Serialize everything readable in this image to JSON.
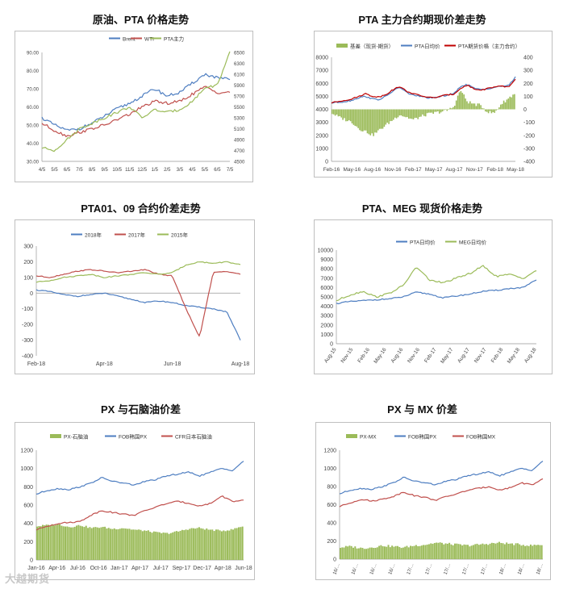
{
  "watermark": "大越期货",
  "chart_data": [
    {
      "id": "c1",
      "type": "line",
      "title": "原油、PTA 价格走势",
      "x_ticks": [
        "4/5",
        "5/5",
        "6/5",
        "7/5",
        "8/5",
        "9/5",
        "10/5",
        "11/5",
        "12/5",
        "1/5",
        "2/5",
        "3/5",
        "4/5",
        "5/5",
        "6/5",
        "7/5"
      ],
      "y_left": {
        "ticks": [
          "30.00",
          "40.00",
          "50.00",
          "60.00",
          "70.00",
          "80.00",
          "90.00"
        ],
        "range": [
          30,
          90
        ]
      },
      "y_right": {
        "ticks": [
          "4500",
          "4700",
          "4900",
          "5100",
          "5300",
          "5500",
          "5700",
          "5900",
          "6100",
          "6300",
          "6500"
        ],
        "range": [
          4500,
          6500
        ]
      },
      "series": [
        {
          "name": "Brent",
          "color": "#4e7ec1",
          "axis": "left",
          "values": [
            54,
            50,
            47,
            48,
            51,
            55,
            59,
            62,
            66,
            70,
            66,
            68,
            73,
            78,
            76,
            75
          ]
        },
        {
          "name": "WTI",
          "color": "#c0504d",
          "axis": "left",
          "values": [
            51,
            47,
            44,
            46,
            48,
            50,
            53,
            56,
            60,
            63,
            62,
            63,
            67,
            71,
            68,
            68
          ]
        },
        {
          "name": "PTA主力",
          "color": "#9bbb59",
          "axis": "right",
          "values": [
            4750,
            4700,
            4900,
            5100,
            5200,
            5300,
            5400,
            5500,
            5300,
            5450,
            5400,
            5450,
            5600,
            5850,
            5900,
            6500
          ]
        }
      ]
    },
    {
      "id": "c2",
      "type": "bar+line",
      "title": "PTA 主力合约期现价差走势",
      "x_ticks": [
        "Feb-16",
        "May-16",
        "Aug-16",
        "Nov-16",
        "Feb-17",
        "May-17",
        "Aug-17",
        "Nov-17",
        "Feb-18",
        "May-18"
      ],
      "y_left": {
        "ticks": [
          "0",
          "1000",
          "2000",
          "3000",
          "4000",
          "5000",
          "6000",
          "7000",
          "8000"
        ],
        "range": [
          0,
          8000
        ]
      },
      "y_right": {
        "ticks": [
          "-400",
          "-300",
          "-200",
          "-100",
          "0",
          "100",
          "200",
          "300",
          "400"
        ],
        "range": [
          -400,
          400
        ]
      },
      "series": [
        {
          "name": "基差（现货-期货）",
          "color": "#9bbb59",
          "kind": "bar",
          "axis": "right",
          "values": [
            -30,
            -60,
            -80,
            -100,
            -150,
            -170,
            -200,
            -160,
            -120,
            -80,
            -40,
            -60,
            -80,
            -60,
            -40,
            -30,
            -20,
            -10,
            20,
            150,
            60,
            40,
            30,
            -20,
            -30,
            40,
            80,
            120
          ]
        },
        {
          "name": "PTA日均价",
          "color": "#4e7ec1",
          "kind": "line",
          "axis": "left",
          "values": [
            4500,
            4550,
            4600,
            4700,
            4900,
            5000,
            4800,
            4750,
            5000,
            5400,
            5700,
            5300,
            5100,
            5000,
            4900,
            4850,
            5000,
            5100,
            5200,
            5800,
            5900,
            5600,
            5500,
            5600,
            5700,
            5800,
            5800,
            6500
          ]
        },
        {
          "name": "PTA期货价格（主力合约）",
          "color": "#c00000",
          "kind": "line",
          "axis": "left",
          "values": [
            4500,
            4600,
            4700,
            4800,
            5000,
            5200,
            5000,
            4950,
            5150,
            5500,
            5750,
            5400,
            5200,
            5050,
            4950,
            4880,
            5020,
            5100,
            5180,
            5650,
            5850,
            5550,
            5470,
            5620,
            5730,
            5760,
            5720,
            6300
          ]
        }
      ]
    },
    {
      "id": "c3",
      "type": "line",
      "title": "PTA01、09 合约价差走势",
      "x_ticks": [
        "Feb-18",
        "Apr-18",
        "Jun-18",
        "Aug-18"
      ],
      "y_left": {
        "ticks": [
          "-400",
          "-300",
          "-200",
          "-100",
          "0",
          "100",
          "200",
          "300"
        ],
        "range": [
          -400,
          300
        ]
      },
      "series": [
        {
          "name": "2018年",
          "color": "#4e7ec1",
          "values": [
            20,
            10,
            -10,
            -20,
            -10,
            0,
            -20,
            -40,
            -60,
            -50,
            -60,
            -80,
            -90,
            -100,
            -120,
            -300
          ]
        },
        {
          "name": "2017年",
          "color": "#c0504d",
          "values": [
            110,
            100,
            120,
            140,
            150,
            140,
            130,
            140,
            150,
            120,
            110,
            -100,
            -280,
            130,
            140,
            120
          ]
        },
        {
          "name": "2015年",
          "color": "#9bbb59",
          "values": [
            70,
            80,
            100,
            110,
            120,
            100,
            110,
            120,
            130,
            120,
            130,
            180,
            200,
            190,
            200,
            180
          ]
        }
      ]
    },
    {
      "id": "c4",
      "type": "line",
      "title": "PTA、MEG 现货价格走势",
      "x_ticks": [
        "Aug-15",
        "Nov-15",
        "Feb-16",
        "May-16",
        "Aug-16",
        "Nov-16",
        "Feb-17",
        "May-17",
        "Aug-17",
        "Nov-17",
        "Feb-18",
        "May-18",
        "Aug-18"
      ],
      "y_left": {
        "ticks": [
          "0",
          "1000",
          "2000",
          "3000",
          "4000",
          "5000",
          "6000",
          "7000",
          "8000",
          "9000",
          "10000"
        ],
        "range": [
          0,
          10000
        ]
      },
      "series": [
        {
          "name": "PTA日均价",
          "color": "#4e7ec1",
          "values": [
            4300,
            4500,
            4600,
            4700,
            4800,
            5000,
            5500,
            5300,
            4900,
            5100,
            5300,
            5600,
            5700,
            5900,
            6000,
            6800
          ]
        },
        {
          "name": "MEG日均价",
          "color": "#9bbb59",
          "values": [
            4600,
            5200,
            5600,
            5000,
            5400,
            6200,
            8200,
            6800,
            6500,
            7000,
            7500,
            8300,
            7200,
            7400,
            7000,
            7800
          ]
        }
      ]
    },
    {
      "id": "c5",
      "type": "bar+line",
      "title": "PX 与石脑油价差",
      "x_ticks": [
        "Jan-16",
        "Apr-16",
        "Jul-16",
        "Oct-16",
        "Jan-17",
        "Apr-17",
        "Jul-17",
        "Sep-17",
        "Dec-17",
        "Apr-18",
        "Jun-18"
      ],
      "y_left": {
        "ticks": [
          "0",
          "200",
          "400",
          "600",
          "800",
          "1000",
          "1200"
        ],
        "range": [
          0,
          1200
        ]
      },
      "series": [
        {
          "name": "PX-石脑油",
          "color": "#9bbb59",
          "kind": "bar",
          "values": [
            370,
            380,
            390,
            360,
            380,
            350,
            360,
            340,
            350,
            330,
            320,
            300,
            290,
            310,
            340,
            350,
            330,
            320,
            330,
            370
          ]
        },
        {
          "name": "FOB韩国PX",
          "color": "#4e7ec1",
          "kind": "line",
          "values": [
            720,
            760,
            780,
            770,
            800,
            840,
            900,
            860,
            840,
            820,
            860,
            880,
            920,
            940,
            960,
            920,
            960,
            1000,
            980,
            1080
          ]
        },
        {
          "name": "CFR日本石脑油",
          "color": "#c0504d",
          "kind": "line",
          "values": [
            330,
            370,
            400,
            410,
            420,
            490,
            540,
            520,
            500,
            490,
            540,
            580,
            620,
            640,
            620,
            590,
            620,
            700,
            640,
            650
          ]
        }
      ]
    },
    {
      "id": "c6",
      "type": "bar+line",
      "title": "PX 与 MX 价差",
      "x_ticks": [
        "16/…",
        "16/…",
        "16/…",
        "16/…",
        "17/…",
        "17/…",
        "17/…",
        "17/…",
        "17/…",
        "18/…",
        "18/…",
        "18/…"
      ],
      "y_left": {
        "ticks": [
          "0",
          "200",
          "400",
          "600",
          "800",
          "1000",
          "1200"
        ],
        "range": [
          0,
          1200
        ]
      },
      "series": [
        {
          "name": "PX-MX",
          "color": "#9bbb59",
          "kind": "bar",
          "values": [
            130,
            140,
            120,
            130,
            150,
            140,
            130,
            150,
            160,
            180,
            170,
            160,
            150,
            160,
            170,
            180,
            170,
            160,
            150,
            160
          ]
        },
        {
          "name": "FOB韩国PX",
          "color": "#4e7ec1",
          "kind": "line",
          "values": [
            720,
            760,
            780,
            770,
            800,
            840,
            900,
            860,
            840,
            820,
            860,
            880,
            920,
            940,
            960,
            920,
            960,
            1000,
            980,
            1080
          ]
        },
        {
          "name": "FOB韩国MX",
          "color": "#c0504d",
          "kind": "line",
          "values": [
            580,
            620,
            660,
            640,
            660,
            690,
            740,
            700,
            680,
            650,
            690,
            720,
            760,
            780,
            800,
            760,
            790,
            840,
            820,
            880
          ]
        }
      ]
    }
  ]
}
